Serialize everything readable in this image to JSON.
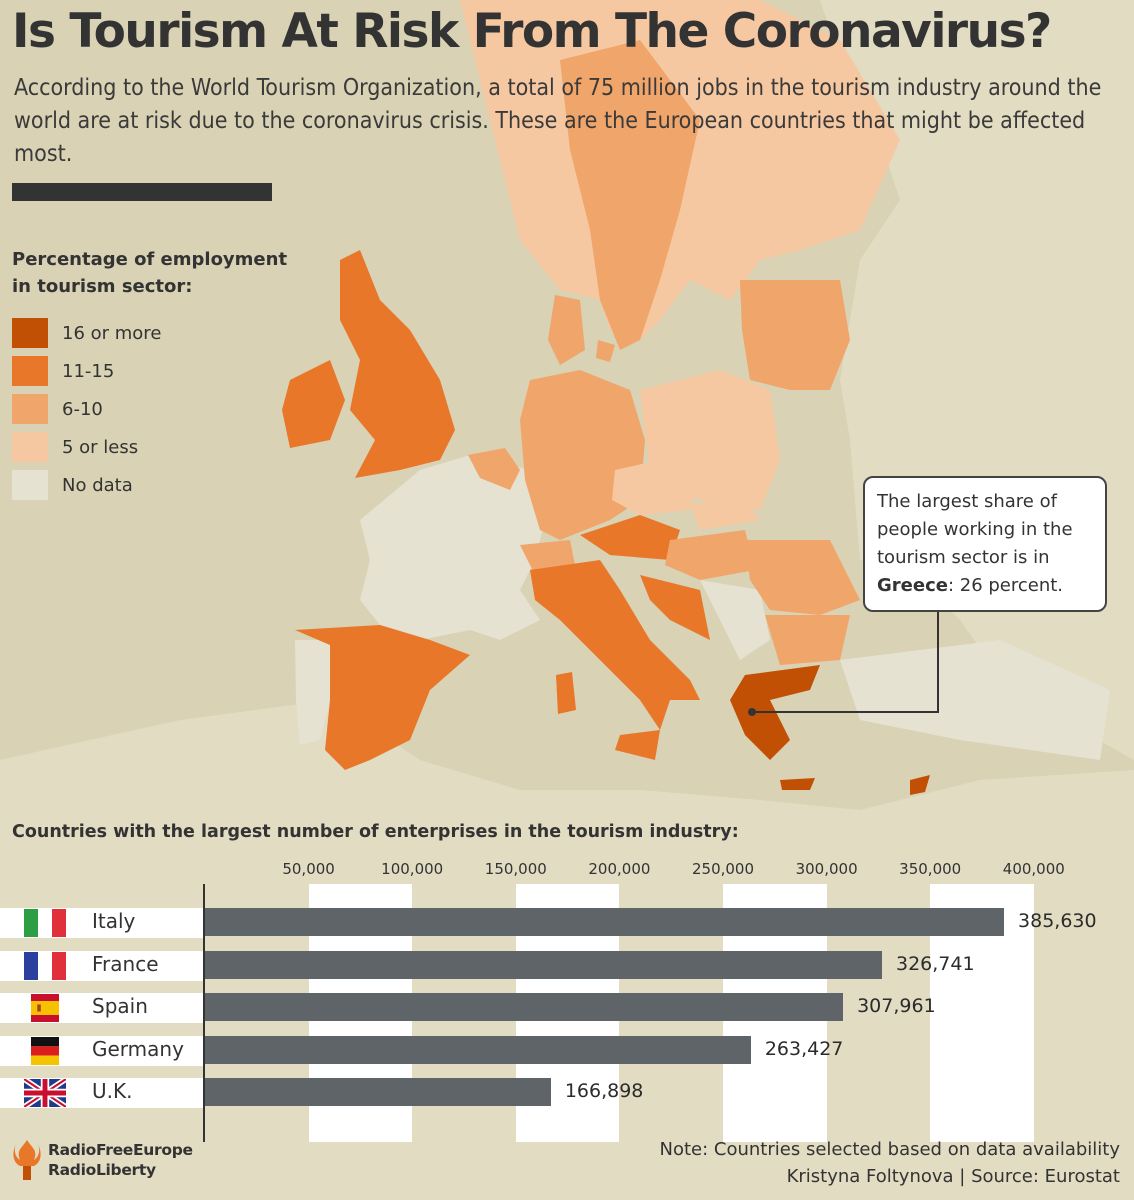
{
  "title": "Is Tourism At Risk From The Coronavirus?",
  "subtitle": "According to the World Tourism Organization, a total of 75 million jobs in the tourism industry around the world are at risk due to the coronavirus crisis. These are the European countries that might be affected most.",
  "legend": {
    "title": "Percentage of employment in tourism sector:",
    "items": [
      {
        "label": "16 or more",
        "color": "#c14f04"
      },
      {
        "label": "11-15",
        "color": "#e8772a"
      },
      {
        "label": "6-10",
        "color": "#f0a56b"
      },
      {
        "label": "5 or less",
        "color": "#f6c8a1"
      },
      {
        "label": "No data",
        "color": "#e5e2d2"
      }
    ]
  },
  "callout": {
    "text_before": "The largest share of people working in the tourism sector is in",
    "country": "Greece",
    "text_after": ": 26 percent."
  },
  "chart_data": {
    "type": "bar",
    "orientation": "horizontal",
    "title": "Countries with the largest number of enterprises in the tourism industry:",
    "categories": [
      "Italy",
      "France",
      "Spain",
      "Germany",
      "U.K."
    ],
    "values": [
      385630,
      326741,
      307961,
      263427,
      166898
    ],
    "value_labels": [
      "385,630",
      "326,741",
      "307,961",
      "263,427",
      "166,898"
    ],
    "xlim": [
      0,
      400000
    ],
    "ticks": [
      50000,
      100000,
      150000,
      200000,
      250000,
      300000,
      350000,
      400000
    ],
    "tick_labels": [
      "50,000",
      "100,000",
      "150,000",
      "200,000",
      "250,000",
      "300,000",
      "350,000",
      "400,000"
    ],
    "flags": [
      "italy-flag-icon",
      "france-flag-icon",
      "spain-flag-icon",
      "germany-flag-icon",
      "uk-flag-icon"
    ],
    "bar_color": "#5f6468"
  },
  "footer": {
    "note": "Note: Countries selected based on data availability",
    "credit": "Kristyna Foltynova | Source: Eurostat"
  },
  "logo": {
    "line1": "RadioFreeEurope",
    "line2": "RadioLiberty"
  }
}
